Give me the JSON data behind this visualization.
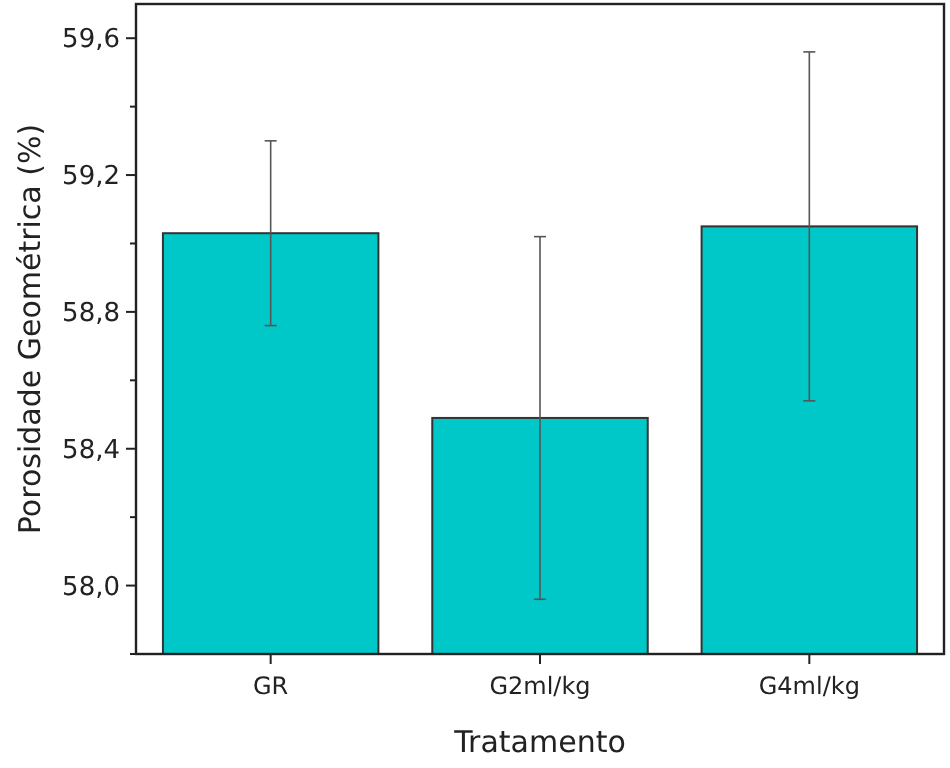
{
  "chart_data": {
    "type": "bar",
    "xlabel": "Tratamento",
    "ylabel": "Porosidade Geométrica (%)",
    "categories": [
      "GR",
      "G2ml/kg",
      "G4ml/kg"
    ],
    "values": [
      59.03,
      58.49,
      59.05
    ],
    "errors": [
      0.27,
      0.53,
      0.51
    ],
    "color": "#00c8c8",
    "ylim": [
      57.8,
      59.7
    ],
    "yticks": [
      {
        "value": 57.8,
        "label": null
      },
      {
        "value": 58.0,
        "label": "58,0"
      },
      {
        "value": 58.2,
        "label": null
      },
      {
        "value": 58.4,
        "label": "58,4"
      },
      {
        "value": 58.6,
        "label": null
      },
      {
        "value": 58.8,
        "label": "58,8"
      },
      {
        "value": 59.0,
        "label": null
      },
      {
        "value": 59.2,
        "label": "59,2"
      },
      {
        "value": 59.4,
        "label": null
      },
      {
        "value": 59.6,
        "label": "59,6"
      }
    ],
    "grid": false
  }
}
